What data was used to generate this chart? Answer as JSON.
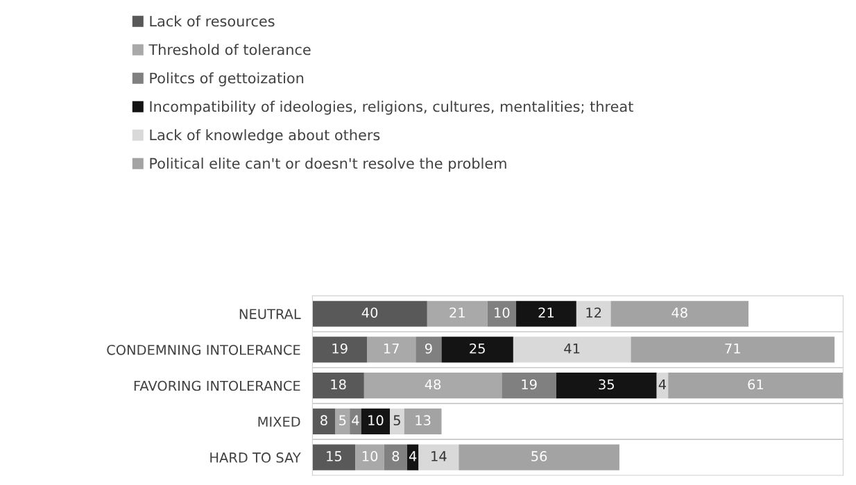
{
  "chart_data": {
    "type": "bar",
    "orientation": "horizontal",
    "stacked": true,
    "data_labels": true,
    "legend": "top",
    "grid": "y",
    "categories": [
      "NEUTRAL",
      "CONDEMNING INTOLERANCE",
      "FAVORING INTOLERANCE",
      "MIXED",
      "HARD TO SAY"
    ],
    "series": [
      {
        "name": "Lack of resources",
        "color": "#595959",
        "values": [
          40,
          19,
          18,
          8,
          15
        ]
      },
      {
        "name": "Threshold of tolerance",
        "color": "#a9a9a9",
        "values": [
          21,
          17,
          48,
          5,
          10
        ]
      },
      {
        "name": "Politcs of gettoization",
        "color": "#808080",
        "values": [
          10,
          9,
          19,
          4,
          8
        ]
      },
      {
        "name": "Incompatibility of ideologies, religions, cultures, mentalities; threat",
        "color": "#141414",
        "values": [
          21,
          25,
          35,
          10,
          4
        ]
      },
      {
        "name": "Lack of knowledge about others",
        "color": "#d9d9d9",
        "values": [
          12,
          41,
          4,
          5,
          14
        ]
      },
      {
        "name": "Political elite can't or doesn't resolve the problem",
        "color": "#a3a3a3",
        "values": [
          48,
          71,
          61,
          13,
          56
        ]
      }
    ]
  }
}
